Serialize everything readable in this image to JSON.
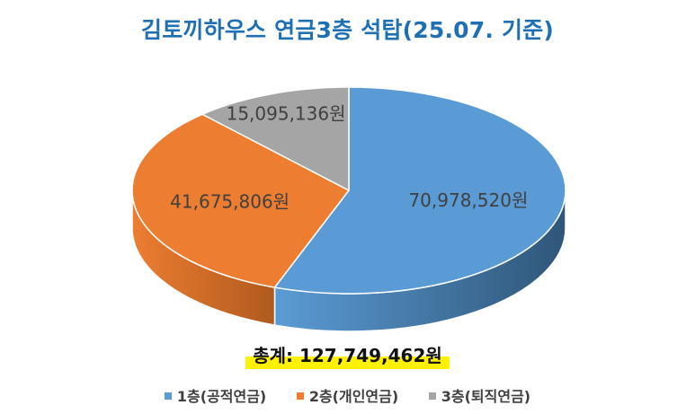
{
  "chart_data": {
    "type": "pie",
    "title": "김토끼하우스 연금3층 석탑(25.07. 기준)",
    "slices": [
      {
        "name": "1층(공적연금)",
        "value": 70978520,
        "label": "70,978,520원",
        "color": "#5b9bd5",
        "side_color": "#2f5678"
      },
      {
        "name": "2층(개인연금)",
        "value": 41675806,
        "label": "41,675,806원",
        "color": "#ed7d31",
        "side_color": "#b05a1e"
      },
      {
        "name": "3층(퇴직연금)",
        "value": 15095136,
        "label": "15,095,136원",
        "color": "#a5a5a5",
        "side_color": "#6e6e6e"
      }
    ],
    "total_label": "총계: 127,749,462원",
    "legend_position": "bottom"
  }
}
